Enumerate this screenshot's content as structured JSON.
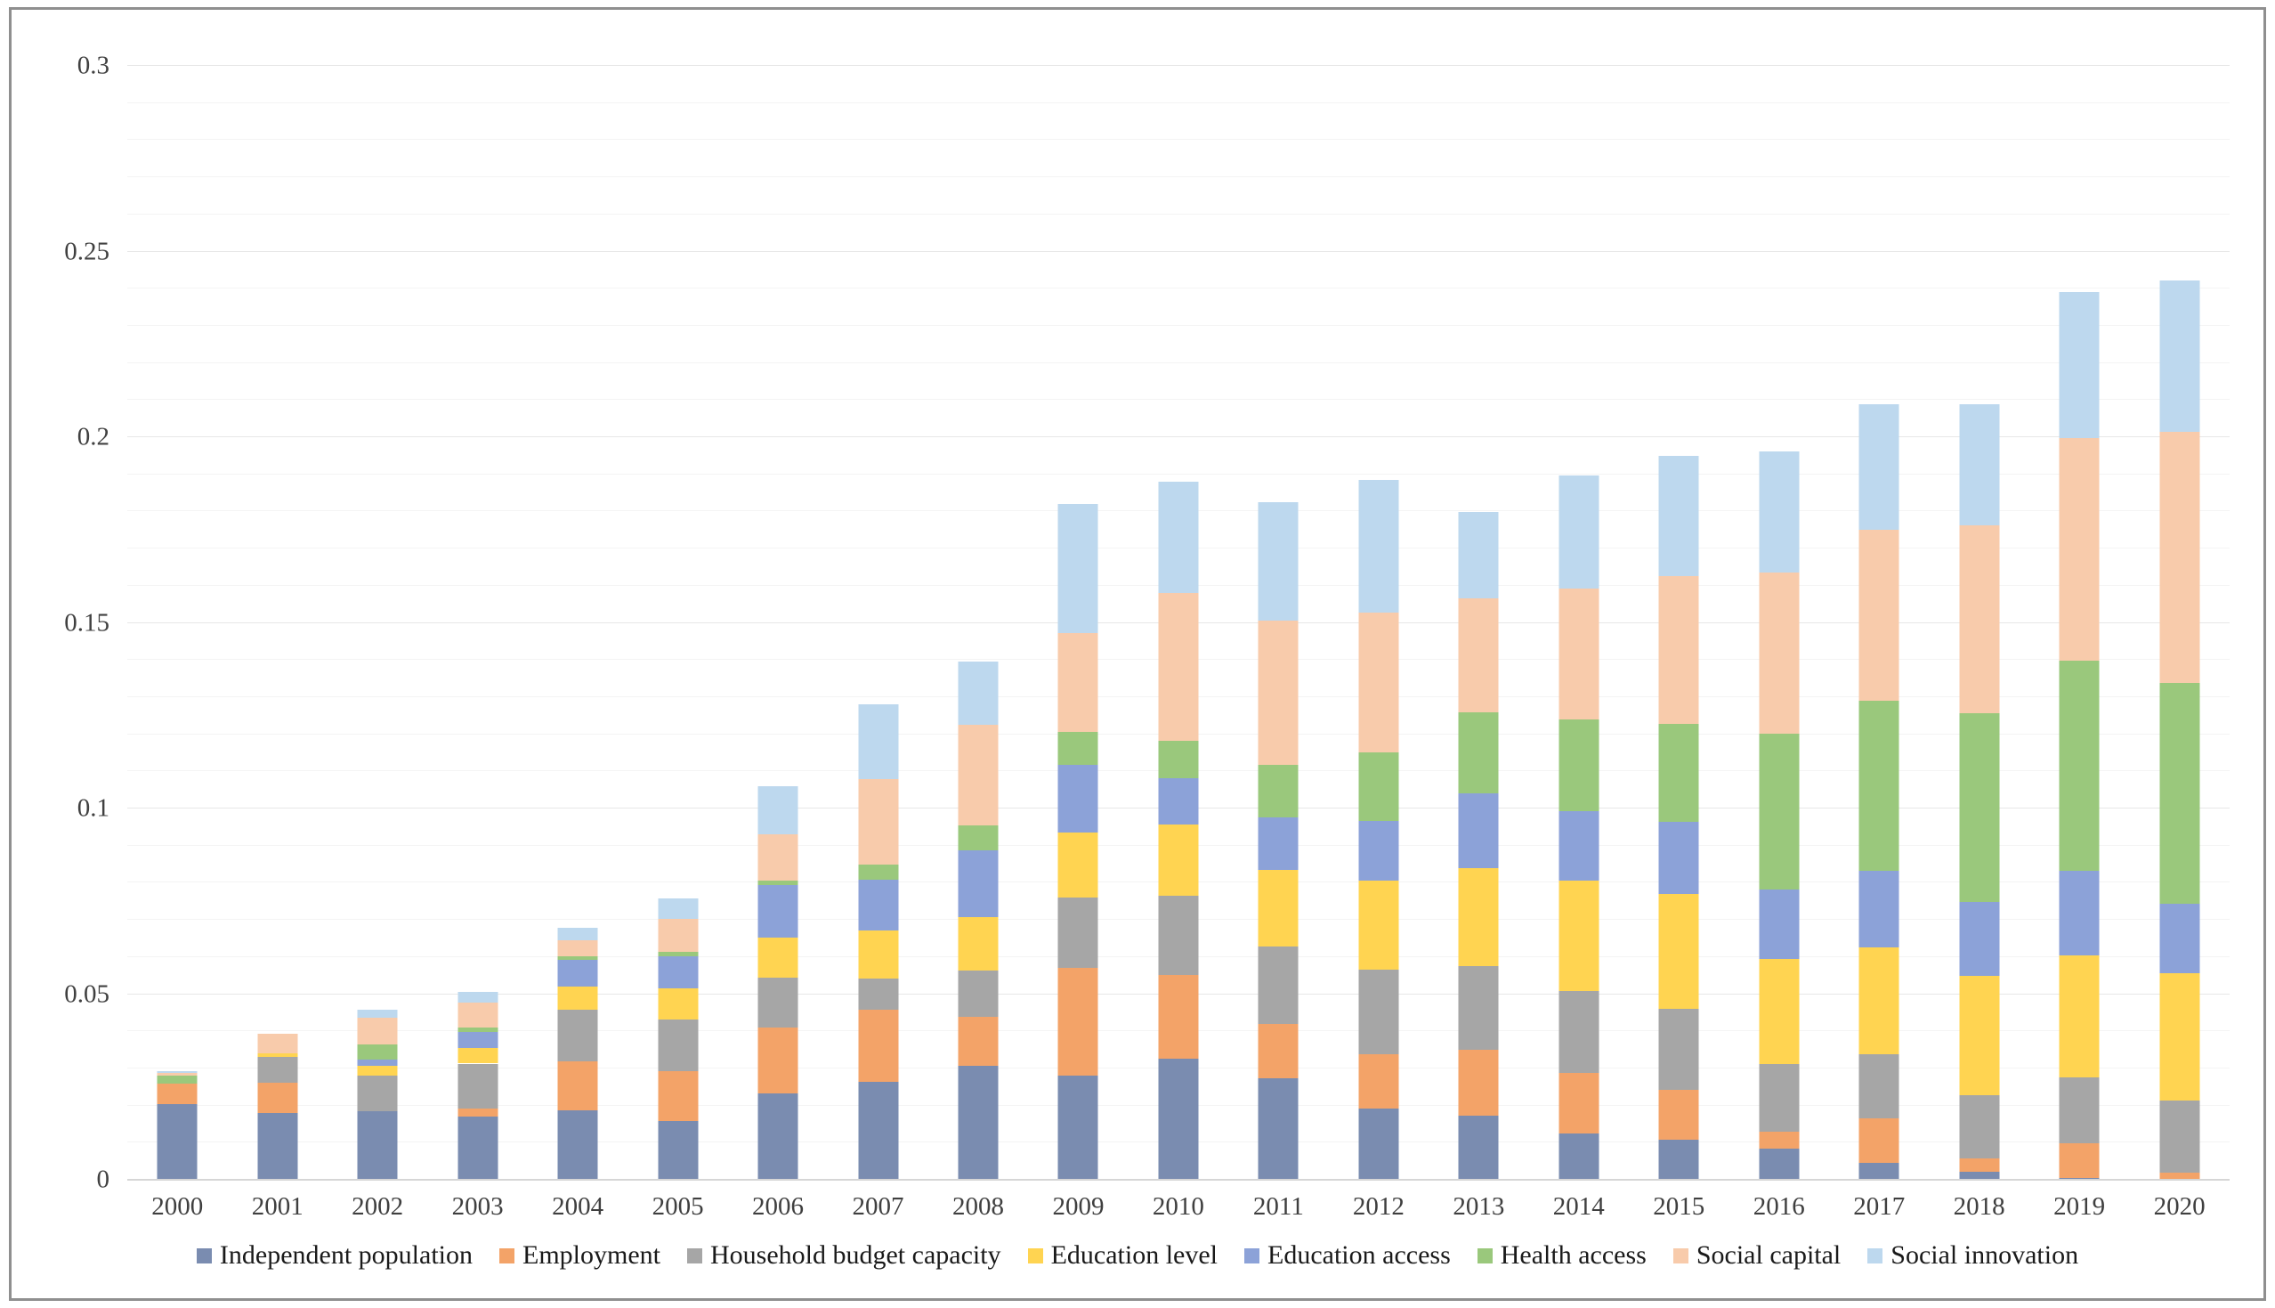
{
  "figure": {
    "border_color": "#8f8f8f",
    "background": "#ffffff"
  },
  "chart_data": {
    "type": "bar",
    "stacked": true,
    "title": "",
    "xlabel": "",
    "ylabel": "",
    "ylim": [
      0,
      0.3
    ],
    "y_major_step": 0.05,
    "y_minor_step": 0.01,
    "y_tick_labels": [
      "0",
      "0.05",
      "0.1",
      "0.15",
      "0.2",
      "0.25",
      "0.3"
    ],
    "grid": true,
    "legend_position": "bottom",
    "categories": [
      "2000",
      "2001",
      "2002",
      "2003",
      "2004",
      "2005",
      "2006",
      "2007",
      "2008",
      "2009",
      "2010",
      "2011",
      "2012",
      "2013",
      "2014",
      "2015",
      "2016",
      "2017",
      "2018",
      "2019",
      "2020"
    ],
    "series": [
      {
        "name": "Independent population",
        "color": "#7A8CB0",
        "values": [
          0.0205,
          0.0179,
          0.0185,
          0.0171,
          0.0188,
          0.0159,
          0.0233,
          0.0263,
          0.0307,
          0.0281,
          0.0327,
          0.0273,
          0.0191,
          0.0173,
          0.0125,
          0.0108,
          0.0083,
          0.0046,
          0.0022,
          0.0005,
          0.0
        ]
      },
      {
        "name": "Employment",
        "color": "#F3A368",
        "values": [
          0.0055,
          0.0082,
          0.0,
          0.002,
          0.0132,
          0.0133,
          0.0178,
          0.0196,
          0.0132,
          0.029,
          0.0224,
          0.0147,
          0.0146,
          0.0176,
          0.0162,
          0.0135,
          0.0046,
          0.0119,
          0.0036,
          0.0093,
          0.002
        ]
      },
      {
        "name": "Household budget capacity",
        "color": "#A6A6A6",
        "values": [
          0.0,
          0.007,
          0.0096,
          0.0122,
          0.0137,
          0.014,
          0.0133,
          0.0084,
          0.0124,
          0.019,
          0.0214,
          0.0209,
          0.0228,
          0.0227,
          0.0222,
          0.0218,
          0.0182,
          0.0174,
          0.0171,
          0.0179,
          0.0194
        ]
      },
      {
        "name": "Education level",
        "color": "#FFD451",
        "values": [
          0.0,
          0.001,
          0.0026,
          0.0042,
          0.0064,
          0.0083,
          0.0109,
          0.0128,
          0.0144,
          0.0174,
          0.0192,
          0.0206,
          0.024,
          0.0263,
          0.0296,
          0.0308,
          0.0284,
          0.0288,
          0.032,
          0.0327,
          0.0343
        ]
      },
      {
        "name": "Education access",
        "color": "#8CA2D8",
        "values": [
          0.0,
          0.0,
          0.0017,
          0.0042,
          0.0071,
          0.0088,
          0.0141,
          0.0137,
          0.018,
          0.0182,
          0.0125,
          0.0142,
          0.0162,
          0.0203,
          0.0189,
          0.0194,
          0.0186,
          0.0204,
          0.02,
          0.0227,
          0.0187
        ]
      },
      {
        "name": "Health access",
        "color": "#9AC87C",
        "values": [
          0.002,
          0.0,
          0.0041,
          0.0014,
          0.0009,
          0.001,
          0.0011,
          0.0041,
          0.0068,
          0.009,
          0.01,
          0.014,
          0.0183,
          0.0217,
          0.0246,
          0.0266,
          0.042,
          0.046,
          0.0507,
          0.0568,
          0.0594
        ]
      },
      {
        "name": "Social capital",
        "color": "#F8CBAB",
        "values": [
          0.0008,
          0.0052,
          0.0072,
          0.0066,
          0.0044,
          0.009,
          0.0126,
          0.0229,
          0.0271,
          0.0266,
          0.0398,
          0.0389,
          0.0377,
          0.0308,
          0.0352,
          0.0397,
          0.0435,
          0.0459,
          0.0506,
          0.0598,
          0.0676
        ]
      },
      {
        "name": "Social innovation",
        "color": "#BDD8EE",
        "values": [
          0.0005,
          0.0,
          0.002,
          0.003,
          0.0034,
          0.0055,
          0.0128,
          0.0203,
          0.017,
          0.0346,
          0.03,
          0.0318,
          0.0357,
          0.0231,
          0.0304,
          0.0324,
          0.0326,
          0.0338,
          0.0326,
          0.0393,
          0.0407
        ]
      }
    ],
    "axis_colors": {
      "gridline_major": "#e7e7e7",
      "gridline_minor": "#f4f4f4",
      "axis_line": "#d6d6d6",
      "tick_label": "#404040"
    }
  }
}
